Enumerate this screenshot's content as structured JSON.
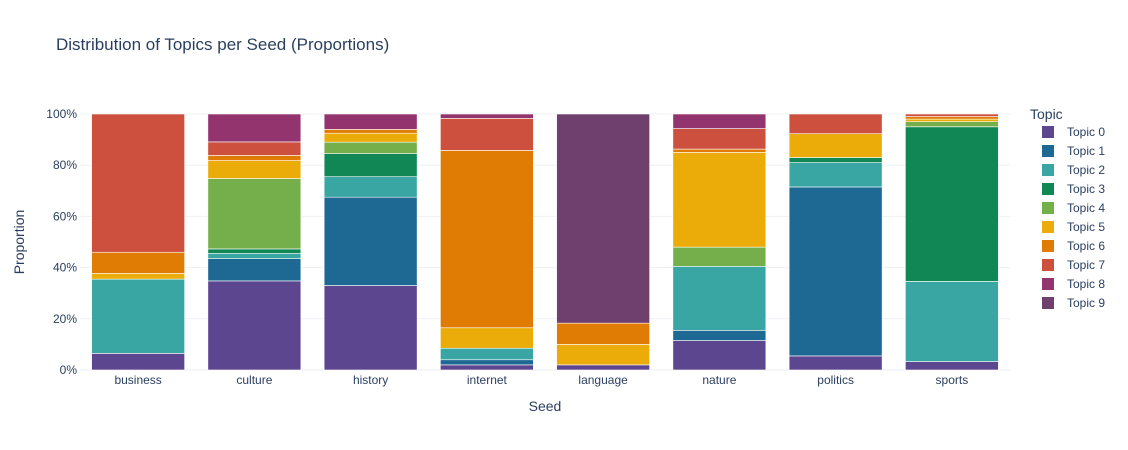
{
  "chart_data": {
    "type": "bar",
    "stacked": true,
    "title": "Distribution of Topics per Seed (Proportions)",
    "xlabel": "Seed",
    "ylabel": "Proportion",
    "ylim": [
      0,
      1
    ],
    "y_tick_values": [
      0,
      0.2,
      0.4,
      0.6,
      0.8,
      1.0
    ],
    "y_tick_labels": [
      "0%",
      "20%",
      "40%",
      "60%",
      "80%",
      "100%"
    ],
    "legend_title": "Topic",
    "legend_position": "right",
    "grid": true,
    "categories": [
      "business",
      "culture",
      "history",
      "internet",
      "language",
      "nature",
      "politics",
      "sports"
    ],
    "series": [
      {
        "name": "Topic 0",
        "color": "#5d4690",
        "values": [
          0.065,
          0.348,
          0.33,
          0.02,
          0.02,
          0.115,
          0.055,
          0.033
        ]
      },
      {
        "name": "Topic 1",
        "color": "#1e6994",
        "values": [
          0.0,
          0.087,
          0.345,
          0.02,
          0.0,
          0.04,
          0.66,
          0.0
        ]
      },
      {
        "name": "Topic 2",
        "color": "#39a6a4",
        "values": [
          0.29,
          0.02,
          0.08,
          0.045,
          0.0,
          0.25,
          0.095,
          0.313
        ]
      },
      {
        "name": "Topic 3",
        "color": "#118755",
        "values": [
          0.0,
          0.018,
          0.09,
          0.0,
          0.0,
          0.0,
          0.02,
          0.604
        ]
      },
      {
        "name": "Topic 4",
        "color": "#74af4b",
        "values": [
          0.0,
          0.275,
          0.045,
          0.0,
          0.0,
          0.075,
          0.0,
          0.02
        ]
      },
      {
        "name": "Topic 5",
        "color": "#ebac09",
        "values": [
          0.022,
          0.07,
          0.035,
          0.08,
          0.08,
          0.37,
          0.093,
          0.01
        ]
      },
      {
        "name": "Topic 6",
        "color": "#e07b04",
        "values": [
          0.083,
          0.02,
          0.015,
          0.693,
          0.083,
          0.013,
          0.0,
          0.01
        ]
      },
      {
        "name": "Topic 7",
        "color": "#cd503e",
        "values": [
          0.54,
          0.053,
          0.0,
          0.125,
          0.0,
          0.08,
          0.077,
          0.01
        ]
      },
      {
        "name": "Topic 8",
        "color": "#93346f",
        "values": [
          0.0,
          0.109,
          0.06,
          0.017,
          0.0,
          0.057,
          0.0,
          0.0
        ]
      },
      {
        "name": "Topic 9",
        "color": "#6f3f6e",
        "values": [
          0.0,
          0.0,
          0.0,
          0.0,
          0.817,
          0.0,
          0.0,
          0.0
        ]
      }
    ]
  }
}
